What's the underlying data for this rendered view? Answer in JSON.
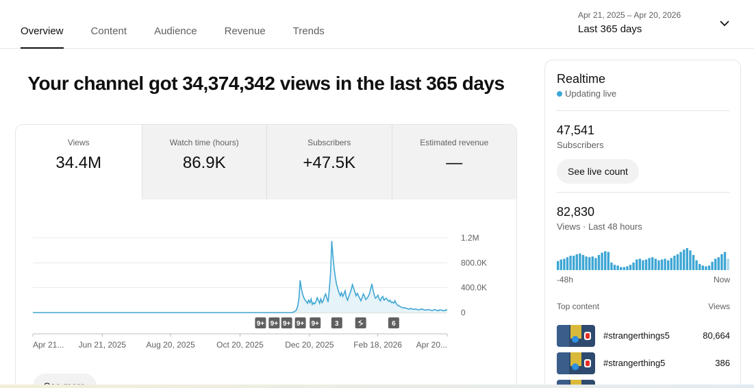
{
  "tabs": [
    {
      "label": "Overview",
      "active": true
    },
    {
      "label": "Content",
      "active": false
    },
    {
      "label": "Audience",
      "active": false
    },
    {
      "label": "Revenue",
      "active": false
    },
    {
      "label": "Trends",
      "active": false
    }
  ],
  "date_picker": {
    "range": "Apr 21, 2025 – Apr 20, 2026",
    "label": "Last 365 days",
    "icon": "chevron-down-icon"
  },
  "headline": "Your channel got 34,374,342 views in the last 365 days",
  "metrics": [
    {
      "label": "Views",
      "value": "34.4M"
    },
    {
      "label": "Watch time (hours)",
      "value": "86.9K"
    },
    {
      "label": "Subscribers",
      "value": "+47.5K"
    },
    {
      "label": "Estimated revenue",
      "value": "—"
    }
  ],
  "see_more_label": "See more",
  "chart_data": {
    "type": "area",
    "title": "",
    "xlabel": "",
    "ylabel": "",
    "series": [
      {
        "color": "#3ea6d4",
        "values": [
          0,
          0,
          0,
          0,
          0,
          0,
          0,
          0,
          0,
          0,
          0,
          0,
          0,
          0,
          0,
          0,
          0,
          0,
          0,
          0,
          0,
          0,
          0,
          0,
          0,
          0,
          0,
          0,
          0,
          0,
          0,
          0,
          0,
          0,
          0,
          0,
          0,
          0,
          0,
          0,
          0,
          0,
          0,
          0,
          0,
          0,
          0,
          0,
          0,
          0,
          0,
          0,
          0,
          0,
          0,
          0,
          0,
          0,
          0,
          0,
          0,
          0,
          0,
          0,
          0,
          0,
          0,
          0,
          0,
          0,
          0,
          0,
          0,
          0,
          0,
          0,
          0,
          0,
          0,
          0,
          0,
          0,
          0,
          0,
          0,
          0,
          0,
          0,
          0,
          0,
          0,
          0,
          0,
          0,
          0,
          0,
          0,
          0,
          0,
          0,
          0,
          0,
          0,
          0,
          0,
          0,
          0,
          0,
          0,
          0,
          0,
          0,
          0,
          0,
          0,
          0,
          0,
          0,
          0,
          0,
          0,
          0,
          0,
          0,
          0,
          0,
          0,
          0,
          0,
          0,
          0,
          0,
          0,
          0,
          0,
          0,
          0,
          0,
          0,
          0,
          0,
          0,
          0,
          0,
          0,
          0,
          0,
          0,
          0,
          0,
          0,
          0,
          0,
          0,
          0,
          0,
          0,
          0,
          0,
          0,
          0,
          0,
          0,
          0,
          0,
          0,
          0,
          0,
          0,
          0,
          0,
          0,
          0,
          0,
          0,
          0,
          0,
          0,
          0,
          0,
          0,
          0,
          0,
          0,
          0,
          0,
          0,
          0,
          0,
          0,
          0,
          0,
          0,
          0,
          0,
          0,
          0,
          0,
          0,
          0,
          0,
          0,
          0,
          0,
          0,
          0,
          0,
          0,
          0,
          0,
          0,
          0,
          0,
          0,
          5000,
          12000,
          25000,
          45000,
          110000,
          230000,
          520000,
          380000,
          300000,
          240000,
          200000,
          180000,
          150000,
          200000,
          160000,
          220000,
          130000,
          160000,
          140000,
          180000,
          240000,
          200000,
          150000,
          220000,
          160000,
          190000,
          260000,
          300000,
          230000,
          170000,
          380000,
          640000,
          1150000,
          900000,
          700000,
          560000,
          450000,
          380000,
          320000,
          270000,
          320000,
          260000,
          300000,
          350000,
          240000,
          200000,
          260000,
          310000,
          370000,
          450000,
          390000,
          330000,
          270000,
          310000,
          270000,
          230000,
          190000,
          240000,
          300000,
          260000,
          210000,
          230000,
          260000,
          300000,
          380000,
          460000,
          360000,
          280000,
          230000,
          250000,
          280000,
          220000,
          190000,
          240000,
          260000,
          200000,
          220000,
          230000,
          200000,
          180000,
          200000,
          160000,
          170000,
          150000,
          190000,
          150000,
          120000,
          110000,
          100000,
          90000,
          80000,
          75000,
          80000,
          70000,
          65000,
          60000,
          55000,
          70000,
          60000,
          50000,
          55000,
          60000,
          50000,
          48000,
          45000,
          50000,
          60000,
          52000,
          45000,
          40000,
          42000,
          50000,
          45000,
          40000,
          38000,
          35000,
          42000,
          50000,
          38000,
          35000,
          30000,
          45000,
          40000,
          35000,
          32000,
          30000,
          48000,
          36000
        ]
      }
    ],
    "x_tick_labels": [
      "Apr 21...",
      "Jun 21, 2025",
      "Aug 20, 2025",
      "Oct 20, 2025",
      "Dec 20, 2025",
      "Feb 18, 2026",
      "Apr 20..."
    ],
    "x_tick_days": [
      0,
      61,
      121,
      182,
      243,
      303,
      364
    ],
    "y_tick_labels": [
      "1.2M",
      "800.0K",
      "400.0K",
      "0"
    ],
    "y_tick_values": [
      1200000,
      800000,
      400000,
      0
    ],
    "ylim": [
      0,
      1200000
    ],
    "grid": true,
    "markers": [
      {
        "label": "9+",
        "day": 200
      },
      {
        "label": "9+",
        "day": 212
      },
      {
        "label": "9+",
        "day": 223
      },
      {
        "label": "9+",
        "day": 235
      },
      {
        "label": "9+",
        "day": 248
      },
      {
        "label": "3",
        "day": 267
      },
      {
        "label": "shorts-icon",
        "day": 288
      },
      {
        "label": "6",
        "day": 317
      }
    ]
  },
  "realtime": {
    "title": "Realtime",
    "live_label": "Updating live",
    "subscribers_value": "47,541",
    "subscribers_label": "Subscribers",
    "live_count_button": "See live count",
    "views_value": "82,830",
    "views_label": "Views · Last 48 hours",
    "bars": [
      12,
      14,
      15,
      17,
      19,
      19,
      21,
      22,
      20,
      18,
      17,
      18,
      16,
      20,
      23,
      25,
      24,
      10,
      7,
      6,
      4,
      4,
      5,
      7,
      10,
      14,
      15,
      13,
      14,
      16,
      17,
      15,
      13,
      14,
      15,
      13,
      16,
      19,
      21,
      24,
      27,
      29,
      26,
      20,
      13,
      8,
      6,
      5,
      6,
      11,
      15,
      17,
      21,
      24,
      15
    ],
    "axis_left": "-48h",
    "axis_right": "Now",
    "top_content_label": "Top content",
    "top_content_views_label": "Views",
    "top_content": [
      {
        "title": "#strangerthings5",
        "views": "80,664"
      },
      {
        "title": "#strangerthing5",
        "views": "386"
      }
    ],
    "accent": "#3ea6d4"
  }
}
